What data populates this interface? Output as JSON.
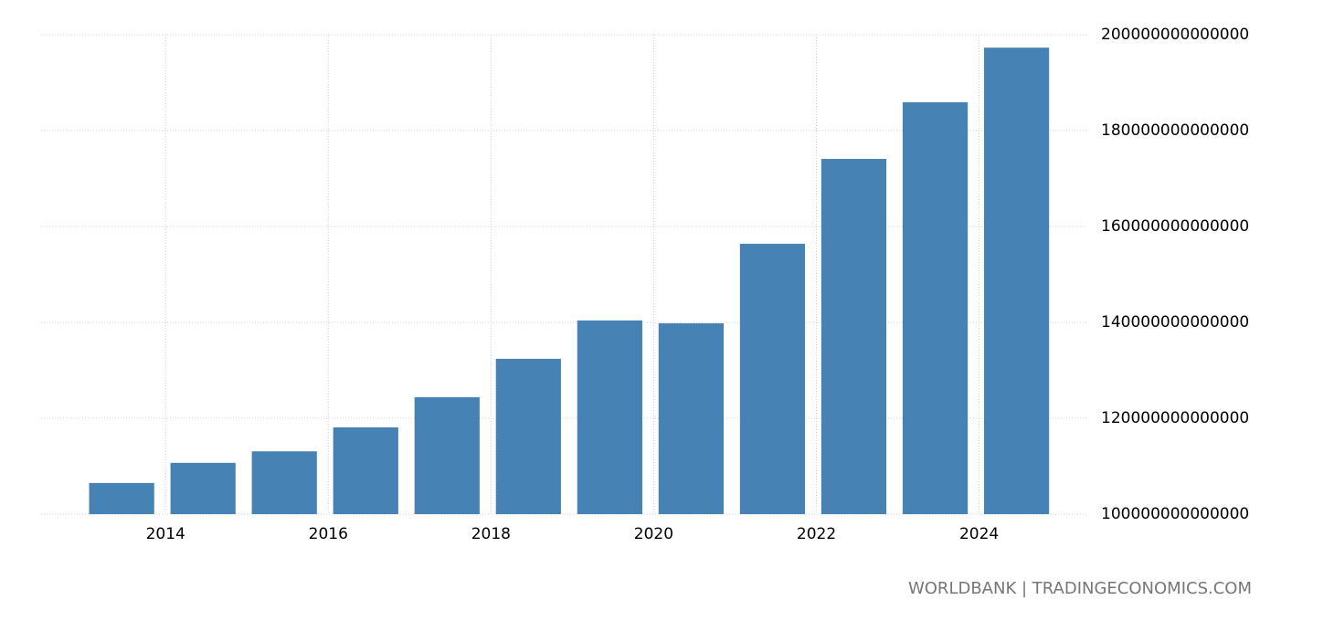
{
  "chart_data": {
    "type": "bar",
    "x": [
      2013,
      2014,
      2015,
      2016,
      2017,
      2018,
      2019,
      2020,
      2021,
      2022,
      2023,
      2024
    ],
    "values": [
      106500000000000,
      110700000000000,
      113100000000000,
      118100000000000,
      124400000000000,
      132400000000000,
      140400000000000,
      139800000000000,
      156400000000000,
      174100000000000,
      185900000000000,
      197300000000000
    ],
    "color": "#4682b4",
    "xlim": [
      2012.47,
      2025.33
    ],
    "xticks": [
      2014,
      2016,
      2018,
      2020,
      2022,
      2024
    ],
    "ylim": [
      100000000000000,
      200000000000000
    ],
    "yticks": [
      100000000000000,
      120000000000000,
      140000000000000,
      160000000000000,
      180000000000000,
      200000000000000
    ],
    "grid": true,
    "source": "WORLDBANK | TRADINGECONOMICS.COM"
  }
}
